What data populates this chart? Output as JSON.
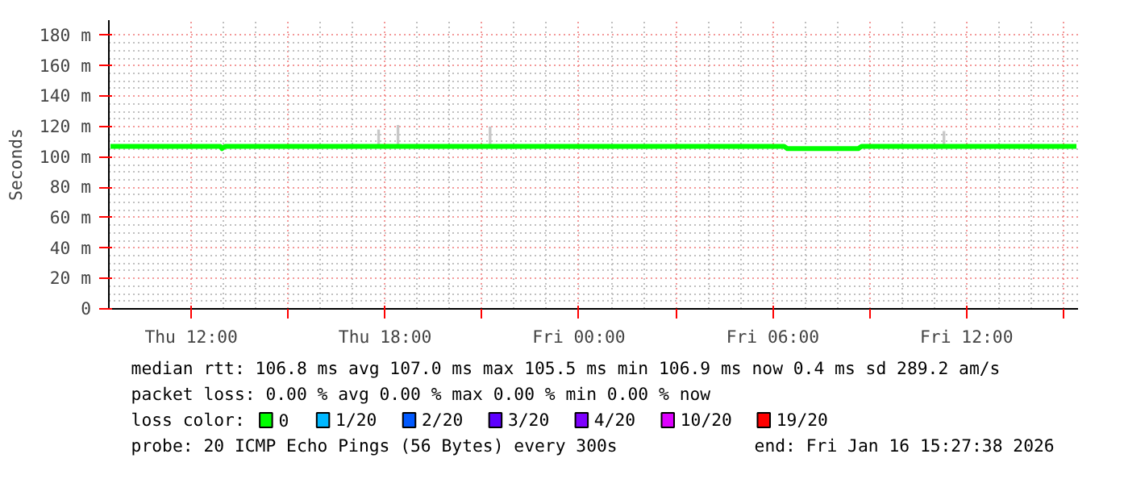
{
  "chart_data": {
    "type": "line",
    "ylabel": "Seconds",
    "xlim": [
      "2026-01-15T09:27",
      "2026-01-16T15:27"
    ],
    "xticks": [
      {
        "value": "2026-01-15T12:00",
        "label": "Thu 12:00"
      },
      {
        "value": "2026-01-15T15:00",
        "label": null
      },
      {
        "value": "2026-01-15T18:00",
        "label": "Thu 18:00"
      },
      {
        "value": "2026-01-15T21:00",
        "label": null
      },
      {
        "value": "2026-01-16T00:00",
        "label": "Fri 00:00"
      },
      {
        "value": "2026-01-16T03:00",
        "label": null
      },
      {
        "value": "2026-01-16T06:00",
        "label": "Fri 06:00"
      },
      {
        "value": "2026-01-16T09:00",
        "label": null
      },
      {
        "value": "2026-01-16T12:00",
        "label": "Fri 12:00"
      },
      {
        "value": "2026-01-16T15:00",
        "label": null
      }
    ],
    "ylim": [
      0,
      190
    ],
    "yticks": [
      0,
      {
        "value": 20,
        "label": "20 m"
      },
      {
        "value": 40,
        "label": "40 m"
      },
      {
        "value": 60,
        "label": "60 m"
      },
      {
        "value": 80,
        "label": "80 m"
      },
      {
        "value": 100,
        "label": "100 m"
      },
      {
        "value": 120,
        "label": "120 m"
      },
      {
        "value": 140,
        "label": "140 m"
      },
      {
        "value": 160,
        "label": "160 m"
      },
      {
        "value": 180,
        "label": "180 m"
      }
    ],
    "grid": true,
    "legend": "bottom",
    "legend_title": "loss color:",
    "series": [
      {
        "type": "bar",
        "color": "#c8c8c8",
        "x": [
          "2026-01-15T17:48",
          "2026-01-15T18:24",
          "2026-01-15T21:15",
          "2026-01-16T11:18"
        ],
        "base": [
          107,
          107,
          107,
          107
        ],
        "values": [
          11,
          14,
          13,
          10
        ]
      },
      {
        "name": "0",
        "color": "#00ff00",
        "x": [
          "2026-01-15T09:30",
          "2026-01-15T12:54",
          "2026-01-15T12:57",
          "2026-01-15T13:03",
          "2026-01-16T06:21",
          "2026-01-16T06:27",
          "2026-01-16T08:39",
          "2026-01-16T08:45",
          "2026-01-16T15:24"
        ],
        "values": [
          107,
          107,
          105.5,
          107,
          107,
          105.5,
          105.5,
          107,
          107
        ]
      },
      {
        "name": "1/20",
        "color": "#00b8ff"
      },
      {
        "name": "2/20",
        "color": "#0059ff"
      },
      {
        "name": "3/20",
        "color": "#5e00ff"
      },
      {
        "name": "4/20",
        "color": "#7e00ff"
      },
      {
        "name": "10/20",
        "color": "#dd00ff"
      },
      {
        "name": "19/20",
        "color": "#ff0000"
      }
    ],
    "annotations": [
      "median rtt:  106.8 ms avg  107.0 ms max  105.5 ms min  106.9 ms now  0.4 ms sd  289.2   am/s",
      "packet loss: 0.00 % avg  0.00 % max  0.00 % min  0.00 % now",
      "probe:       20 ICMP Echo Pings (56 Bytes) every 300s",
      "end: Fri Jan 16 15:27:38 2026"
    ]
  }
}
